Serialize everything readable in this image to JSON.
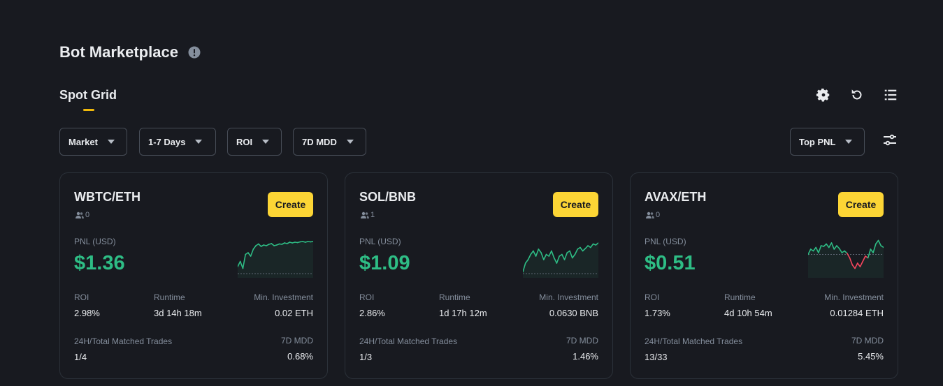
{
  "header": {
    "title": "Bot Marketplace"
  },
  "tabs": {
    "active": "Spot Grid"
  },
  "filters": [
    {
      "label": "Market"
    },
    {
      "label": "1-7 Days"
    },
    {
      "label": "ROI"
    },
    {
      "label": "7D MDD"
    }
  ],
  "sort": {
    "label": "Top PNL"
  },
  "labels": {
    "create": "Create",
    "pnl": "PNL (USD)",
    "roi": "ROI",
    "runtime": "Runtime",
    "min_investment": "Min. Investment",
    "matched_trades": "24H/Total Matched Trades",
    "mdd": "7D MDD"
  },
  "cards": [
    {
      "pair": "WBTC/ETH",
      "users": "0",
      "pnl": "$1.36",
      "roi": "2.98%",
      "runtime": "3d 14h 18m",
      "min_investment": "0.02 ETH",
      "matched_trades": "1/4",
      "mdd": "0.68%",
      "spark": [
        0.2,
        0.35,
        0.15,
        0.55,
        0.6,
        0.5,
        0.7,
        0.8,
        0.85,
        0.78,
        0.82,
        0.8,
        0.84,
        0.86,
        0.8,
        0.82,
        0.85,
        0.84,
        0.88,
        0.86,
        0.9,
        0.88,
        0.9,
        0.89,
        0.91,
        0.92,
        0.9,
        0.92,
        0.91,
        0.92
      ]
    },
    {
      "pair": "SOL/BNB",
      "users": "1",
      "pnl": "$1.09",
      "roi": "2.86%",
      "runtime": "1d 17h 12m",
      "min_investment": "0.0630 BNB",
      "matched_trades": "1/3",
      "mdd": "1.46%",
      "spark": [
        0.05,
        0.3,
        0.4,
        0.55,
        0.65,
        0.5,
        0.7,
        0.6,
        0.4,
        0.55,
        0.5,
        0.65,
        0.45,
        0.3,
        0.5,
        0.55,
        0.4,
        0.6,
        0.65,
        0.45,
        0.55,
        0.7,
        0.75,
        0.65,
        0.72,
        0.8,
        0.75,
        0.85,
        0.82,
        0.88
      ]
    },
    {
      "pair": "AVAX/ETH",
      "users": "0",
      "pnl": "$0.51",
      "roi": "1.73%",
      "runtime": "4d 10h 54m",
      "min_investment": "0.01284 ETH",
      "matched_trades": "13/33",
      "mdd": "5.45%",
      "baseline": 0.55,
      "spark": [
        0.55,
        0.7,
        0.65,
        0.75,
        0.6,
        0.8,
        0.78,
        0.85,
        0.75,
        0.88,
        0.7,
        0.8,
        0.72,
        0.6,
        0.65,
        0.58,
        0.45,
        0.25,
        0.15,
        0.3,
        0.2,
        0.35,
        0.5,
        0.45,
        0.7,
        0.6,
        0.85,
        0.95,
        0.8,
        0.75
      ]
    }
  ],
  "colors": {
    "accent": "#fcd535",
    "positive": "#2ebd85",
    "negative": "#f6465d"
  }
}
